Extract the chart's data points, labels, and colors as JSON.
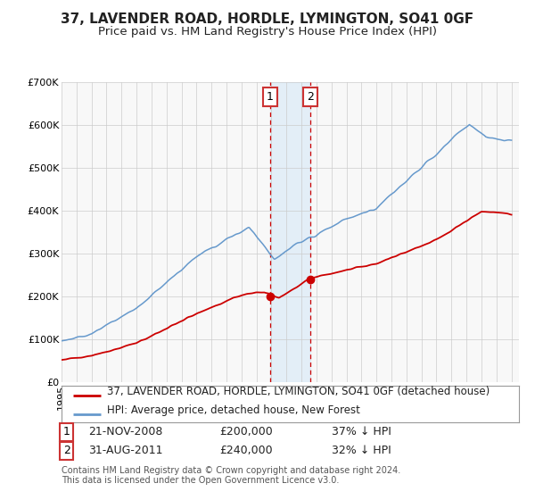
{
  "title": "37, LAVENDER ROAD, HORDLE, LYMINGTON, SO41 0GF",
  "subtitle": "Price paid vs. HM Land Registry's House Price Index (HPI)",
  "ylim": [
    0,
    700000
  ],
  "yticks": [
    0,
    100000,
    200000,
    300000,
    400000,
    500000,
    600000,
    700000
  ],
  "ytick_labels": [
    "£0",
    "£100K",
    "£200K",
    "£300K",
    "£400K",
    "£500K",
    "£600K",
    "£700K"
  ],
  "background_color": "#ffffff",
  "plot_bg_color": "#f8f8f8",
  "grid_color": "#cccccc",
  "t1_year": 2008.917,
  "t2_year": 2011.583,
  "t1_price": 200000,
  "t2_price": 240000,
  "legend_line1": "37, LAVENDER ROAD, HORDLE, LYMINGTON, SO41 0GF (detached house)",
  "legend_line2": "HPI: Average price, detached house, New Forest",
  "footer1": "Contains HM Land Registry data © Crown copyright and database right 2024.",
  "footer2": "This data is licensed under the Open Government Licence v3.0.",
  "t1_date": "21-NOV-2008",
  "t2_date": "31-AUG-2011",
  "t1_pct": "37% ↓ HPI",
  "t2_pct": "32% ↓ HPI",
  "line1_color": "#cc0000",
  "line2_color": "#6699cc",
  "marker_color": "#cc0000",
  "shade_color": "#d6e8f7",
  "vline_color": "#cc0000",
  "box_color": "#cc3333",
  "title_fontsize": 11,
  "subtitle_fontsize": 9.5,
  "tick_fontsize": 8,
  "legend_fontsize": 8.5,
  "table_fontsize": 9,
  "footer_fontsize": 7
}
